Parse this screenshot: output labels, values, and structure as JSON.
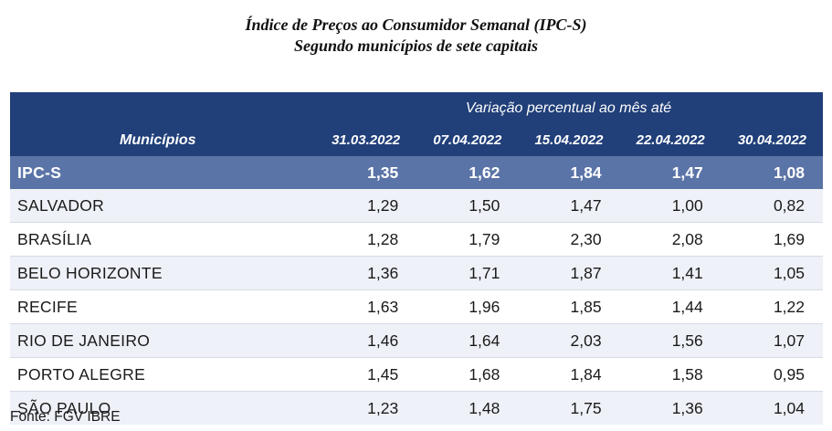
{
  "title": {
    "line1": "Índice de Preços ao Consumidor Semanal (IPC-S)",
    "line2": "Segundo municípios de sete capitais"
  },
  "table": {
    "super_header": "Variação percentual ao mês até",
    "row_header": "Municípios",
    "dates": [
      "31.03.2022",
      "07.04.2022",
      "15.04.2022",
      "22.04.2022",
      "30.04.2022"
    ],
    "rows": [
      {
        "name": "IPC-S",
        "values": [
          "1,35",
          "1,62",
          "1,84",
          "1,47",
          "1,08"
        ]
      },
      {
        "name": "SALVADOR",
        "values": [
          "1,29",
          "1,50",
          "1,47",
          "1,00",
          "0,82"
        ]
      },
      {
        "name": "BRASÍLIA",
        "values": [
          "1,28",
          "1,79",
          "2,30",
          "2,08",
          "1,69"
        ]
      },
      {
        "name": "BELO HORIZONTE",
        "values": [
          "1,36",
          "1,71",
          "1,87",
          "1,41",
          "1,05"
        ]
      },
      {
        "name": "RECIFE",
        "values": [
          "1,63",
          "1,96",
          "1,85",
          "1,44",
          "1,22"
        ]
      },
      {
        "name": "RIO DE JANEIRO",
        "values": [
          "1,46",
          "1,64",
          "2,03",
          "1,56",
          "1,07"
        ]
      },
      {
        "name": "PORTO ALEGRE",
        "values": [
          "1,45",
          "1,68",
          "1,84",
          "1,58",
          "0,95"
        ]
      },
      {
        "name": "SÃO PAULO",
        "values": [
          "1,23",
          "1,48",
          "1,75",
          "1,36",
          "1,04"
        ]
      }
    ]
  },
  "source": "Fonte: FGV IBRE",
  "colors": {
    "header_bg": "#213f79",
    "ipc_row_bg": "#5b74a7",
    "stripe_bg": "#eef1f7"
  }
}
